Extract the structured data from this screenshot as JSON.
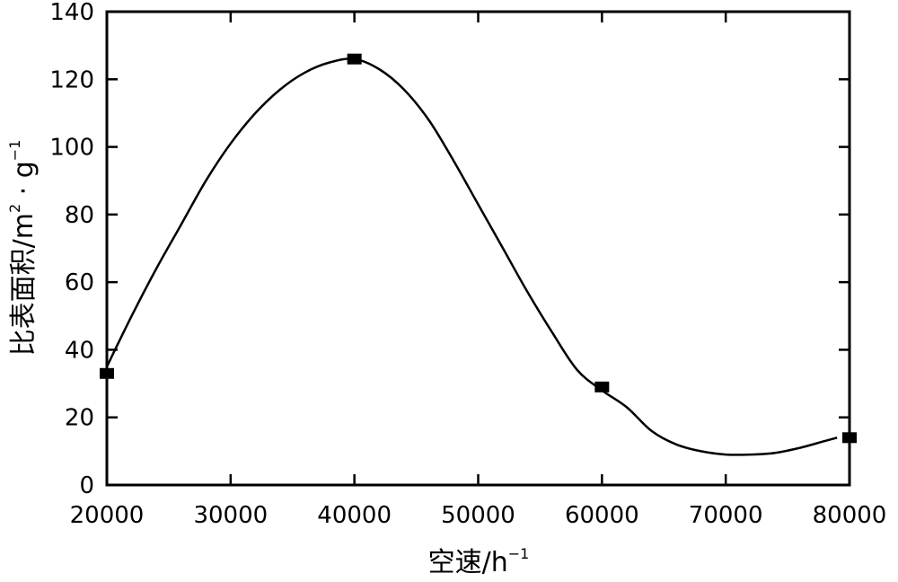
{
  "chart_data": {
    "type": "line",
    "title": "",
    "xlabel": {
      "text": "空速/h",
      "superscript": "−1"
    },
    "ylabel": {
      "text": "比表面积/m",
      "sup1": "2",
      "middle": " · g",
      "sup2": "−1"
    },
    "xlim": [
      20000,
      80000
    ],
    "ylim": [
      0,
      140
    ],
    "x_ticks": [
      20000,
      30000,
      40000,
      50000,
      60000,
      70000,
      80000
    ],
    "y_ticks": [
      0,
      20,
      40,
      60,
      80,
      100,
      120,
      140
    ],
    "grid": false,
    "legend": "none",
    "line_color": "#000000",
    "marker_color": "#000000",
    "markers": [
      {
        "x": 20000,
        "y": 33
      },
      {
        "x": 40000,
        "y": 126
      },
      {
        "x": 60000,
        "y": 29
      },
      {
        "x": 80000,
        "y": 14
      }
    ],
    "curve": [
      {
        "x": 20000,
        "y": 35
      },
      {
        "x": 22000,
        "y": 50
      },
      {
        "x": 24000,
        "y": 64
      },
      {
        "x": 26000,
        "y": 77
      },
      {
        "x": 28000,
        "y": 90
      },
      {
        "x": 30000,
        "y": 101
      },
      {
        "x": 32000,
        "y": 110
      },
      {
        "x": 34000,
        "y": 117
      },
      {
        "x": 36000,
        "y": 122
      },
      {
        "x": 38000,
        "y": 125
      },
      {
        "x": 40000,
        "y": 126
      },
      {
        "x": 42000,
        "y": 123
      },
      {
        "x": 44000,
        "y": 117
      },
      {
        "x": 46000,
        "y": 108
      },
      {
        "x": 48000,
        "y": 96
      },
      {
        "x": 50000,
        "y": 83
      },
      {
        "x": 52000,
        "y": 70
      },
      {
        "x": 54000,
        "y": 57
      },
      {
        "x": 56000,
        "y": 45
      },
      {
        "x": 58000,
        "y": 34
      },
      {
        "x": 60000,
        "y": 28
      },
      {
        "x": 62000,
        "y": 23
      },
      {
        "x": 64000,
        "y": 16
      },
      {
        "x": 66000,
        "y": 12
      },
      {
        "x": 68000,
        "y": 10
      },
      {
        "x": 70000,
        "y": 9
      },
      {
        "x": 72000,
        "y": 9
      },
      {
        "x": 74000,
        "y": 9.5
      },
      {
        "x": 76000,
        "y": 11
      },
      {
        "x": 78000,
        "y": 13
      },
      {
        "x": 79000,
        "y": 14
      }
    ]
  }
}
